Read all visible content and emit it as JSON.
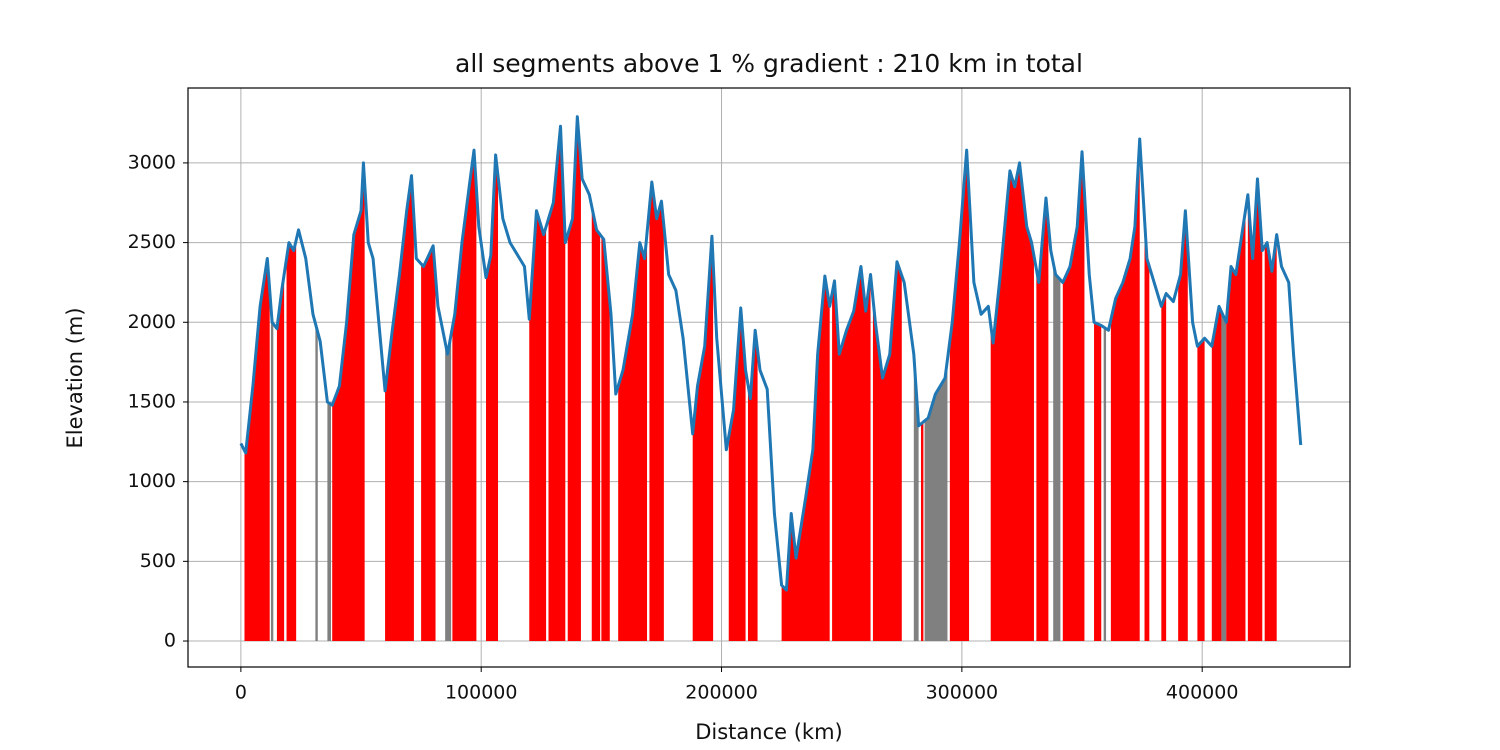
{
  "chart_data": {
    "type": "line",
    "title": "all segments above 1 % gradient : 210 km in total",
    "xlabel": "Distance (km)",
    "ylabel": "Elevation (m)",
    "x": [
      0,
      2000,
      5000,
      8000,
      11000,
      13000,
      15000,
      17000,
      20000,
      22000,
      24000,
      27000,
      30000,
      33000,
      36000,
      38000,
      41000,
      44000,
      47000,
      50000,
      51000,
      53000,
      55000,
      58000,
      60000,
      63000,
      66000,
      69000,
      71000,
      73000,
      76000,
      80000,
      82000,
      86000,
      89000,
      92000,
      95000,
      97000,
      99000,
      102000,
      104000,
      106000,
      109000,
      112000,
      116000,
      118000,
      120000,
      123000,
      126000,
      130000,
      133000,
      135000,
      138000,
      140000,
      142000,
      145000,
      148000,
      151000,
      154000,
      156000,
      159000,
      163000,
      166000,
      168000,
      171000,
      173000,
      175000,
      178000,
      181000,
      184000,
      188000,
      190000,
      193000,
      196000,
      198000,
      202000,
      205000,
      208000,
      210000,
      212000,
      214000,
      216000,
      219000,
      222000,
      225000,
      227000,
      229000,
      231000,
      235000,
      238000,
      240000,
      243000,
      245000,
      247000,
      249000,
      252000,
      255000,
      258000,
      260000,
      262000,
      264000,
      267000,
      270000,
      273000,
      276000,
      280000,
      282000,
      286000,
      289000,
      293000,
      296000,
      299000,
      302000,
      305000,
      308000,
      311000,
      313000,
      316000,
      320000,
      322000,
      324000,
      327000,
      329000,
      332000,
      335000,
      337000,
      339000,
      342000,
      345000,
      348000,
      350000,
      353000,
      355000,
      358000,
      361000,
      364000,
      367000,
      370000,
      372000,
      374000,
      377000,
      380000,
      383000,
      385000,
      388000,
      391000,
      393000,
      396000,
      398000,
      401000,
      404000,
      407000,
      410000,
      412000,
      414000,
      417000,
      419000,
      421000,
      423000,
      425000,
      427000,
      429000,
      431000,
      433000,
      436000,
      438000,
      440000,
      441000
    ],
    "values": [
      1240,
      1180,
      1600,
      2100,
      2400,
      2000,
      1960,
      2200,
      2500,
      2450,
      2580,
      2400,
      2050,
      1880,
      1500,
      1480,
      1600,
      2000,
      2550,
      2700,
      3000,
      2500,
      2400,
      1900,
      1570,
      1950,
      2300,
      2700,
      2920,
      2400,
      2350,
      2480,
      2100,
      1800,
      2050,
      2500,
      2850,
      3080,
      2600,
      2280,
      2420,
      3050,
      2650,
      2500,
      2400,
      2350,
      2020,
      2700,
      2550,
      2750,
      3230,
      2500,
      2650,
      3290,
      2900,
      2800,
      2580,
      2520,
      2050,
      1550,
      1700,
      2050,
      2500,
      2400,
      2880,
      2650,
      2760,
      2300,
      2200,
      1900,
      1300,
      1600,
      1850,
      2540,
      1900,
      1200,
      1450,
      2090,
      1700,
      1520,
      1950,
      1700,
      1580,
      800,
      350,
      320,
      800,
      520,
      900,
      1200,
      1800,
      2290,
      2100,
      2260,
      1800,
      1950,
      2070,
      2350,
      2070,
      2300,
      2000,
      1650,
      1800,
      2380,
      2250,
      1800,
      1350,
      1400,
      1550,
      1650,
      2000,
      2500,
      3080,
      2250,
      2050,
      2100,
      1870,
      2300,
      2950,
      2850,
      3000,
      2600,
      2500,
      2250,
      2780,
      2450,
      2300,
      2250,
      2350,
      2600,
      3070,
      2300,
      2000,
      1980,
      1950,
      2150,
      2250,
      2400,
      2600,
      3150,
      2400,
      2250,
      2100,
      2180,
      2130,
      2300,
      2700,
      2000,
      1850,
      1900,
      1850,
      2100,
      2000,
      2350,
      2300,
      2600,
      2800,
      2400,
      2900,
      2450,
      2500,
      2320,
      2550,
      2350,
      2250,
      1800,
      1420,
      1230
    ],
    "color": "#1f77b4",
    "segments": [
      {
        "start": 1500,
        "end": 12000,
        "color": "#ff0000"
      },
      {
        "start": 12500,
        "end": 13500,
        "color": "#808080"
      },
      {
        "start": 15000,
        "end": 18000,
        "color": "#ff0000"
      },
      {
        "start": 19000,
        "end": 23000,
        "color": "#ff0000"
      },
      {
        "start": 31000,
        "end": 32000,
        "color": "#808080"
      },
      {
        "start": 36000,
        "end": 37500,
        "color": "#808080"
      },
      {
        "start": 38000,
        "end": 51500,
        "color": "#ff0000"
      },
      {
        "start": 60000,
        "end": 72000,
        "color": "#ff0000"
      },
      {
        "start": 75000,
        "end": 81000,
        "color": "#ff0000"
      },
      {
        "start": 85000,
        "end": 87500,
        "color": "#808080"
      },
      {
        "start": 88000,
        "end": 98000,
        "color": "#ff0000"
      },
      {
        "start": 102000,
        "end": 107000,
        "color": "#ff0000"
      },
      {
        "start": 120000,
        "end": 127000,
        "color": "#ff0000"
      },
      {
        "start": 128000,
        "end": 135000,
        "color": "#ff0000"
      },
      {
        "start": 136000,
        "end": 141500,
        "color": "#ff0000"
      },
      {
        "start": 146000,
        "end": 149500,
        "color": "#ff0000"
      },
      {
        "start": 150000,
        "end": 153500,
        "color": "#ff0000"
      },
      {
        "start": 157000,
        "end": 169000,
        "color": "#ff0000"
      },
      {
        "start": 170000,
        "end": 176000,
        "color": "#ff0000"
      },
      {
        "start": 188000,
        "end": 196500,
        "color": "#ff0000"
      },
      {
        "start": 203000,
        "end": 210000,
        "color": "#ff0000"
      },
      {
        "start": 211000,
        "end": 215000,
        "color": "#ff0000"
      },
      {
        "start": 225000,
        "end": 245000,
        "color": "#ff0000"
      },
      {
        "start": 246000,
        "end": 262000,
        "color": "#ff0000"
      },
      {
        "start": 263000,
        "end": 275000,
        "color": "#ff0000"
      },
      {
        "start": 280000,
        "end": 282000,
        "color": "#808080"
      },
      {
        "start": 283000,
        "end": 284000,
        "color": "#ff0000"
      },
      {
        "start": 284500,
        "end": 294000,
        "color": "#808080"
      },
      {
        "start": 295000,
        "end": 303000,
        "color": "#ff0000"
      },
      {
        "start": 312000,
        "end": 330000,
        "color": "#ff0000"
      },
      {
        "start": 331000,
        "end": 336000,
        "color": "#ff0000"
      },
      {
        "start": 338000,
        "end": 341000,
        "color": "#808080"
      },
      {
        "start": 342000,
        "end": 351000,
        "color": "#ff0000"
      },
      {
        "start": 355000,
        "end": 358000,
        "color": "#ff0000"
      },
      {
        "start": 359000,
        "end": 360000,
        "color": "#808080"
      },
      {
        "start": 362000,
        "end": 374000,
        "color": "#ff0000"
      },
      {
        "start": 376000,
        "end": 378000,
        "color": "#ff0000"
      },
      {
        "start": 383000,
        "end": 385000,
        "color": "#ff0000"
      },
      {
        "start": 390000,
        "end": 394000,
        "color": "#ff0000"
      },
      {
        "start": 398000,
        "end": 401000,
        "color": "#ff0000"
      },
      {
        "start": 404000,
        "end": 408000,
        "color": "#ff0000"
      },
      {
        "start": 408000,
        "end": 410000,
        "color": "#808080"
      },
      {
        "start": 410000,
        "end": 418000,
        "color": "#ff0000"
      },
      {
        "start": 419000,
        "end": 425000,
        "color": "#ff0000"
      },
      {
        "start": 426000,
        "end": 431000,
        "color": "#ff0000"
      }
    ],
    "xlim": [
      -22000,
      461500
    ],
    "ylim": [
      -163,
      3470
    ],
    "xticks": [
      0,
      100000,
      200000,
      300000,
      400000
    ],
    "yticks": [
      0,
      500,
      1000,
      1500,
      2000,
      2500,
      3000
    ],
    "grid": true
  }
}
